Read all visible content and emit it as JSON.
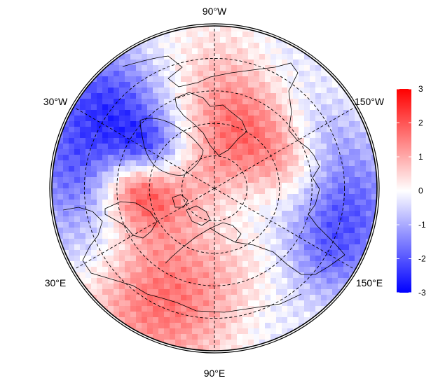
{
  "map": {
    "projection": "north-polar-stereographic",
    "longitude_labels": {
      "top": "90°W",
      "upper_left": "30°W",
      "upper_right": "150°W",
      "lower_left": "30°E",
      "lower_right": "150°E",
      "bottom": "90°E"
    },
    "graticule": {
      "style": "dashed",
      "latitude_circles": 4
    },
    "colorbar": {
      "min": -3,
      "max": 3,
      "ticks": [
        "3",
        "2",
        "1",
        "0",
        "-1",
        "-2",
        "-3"
      ],
      "colors": {
        "low": "#0000ff",
        "mid": "#ffffff",
        "high": "#ff0000"
      }
    }
  }
}
